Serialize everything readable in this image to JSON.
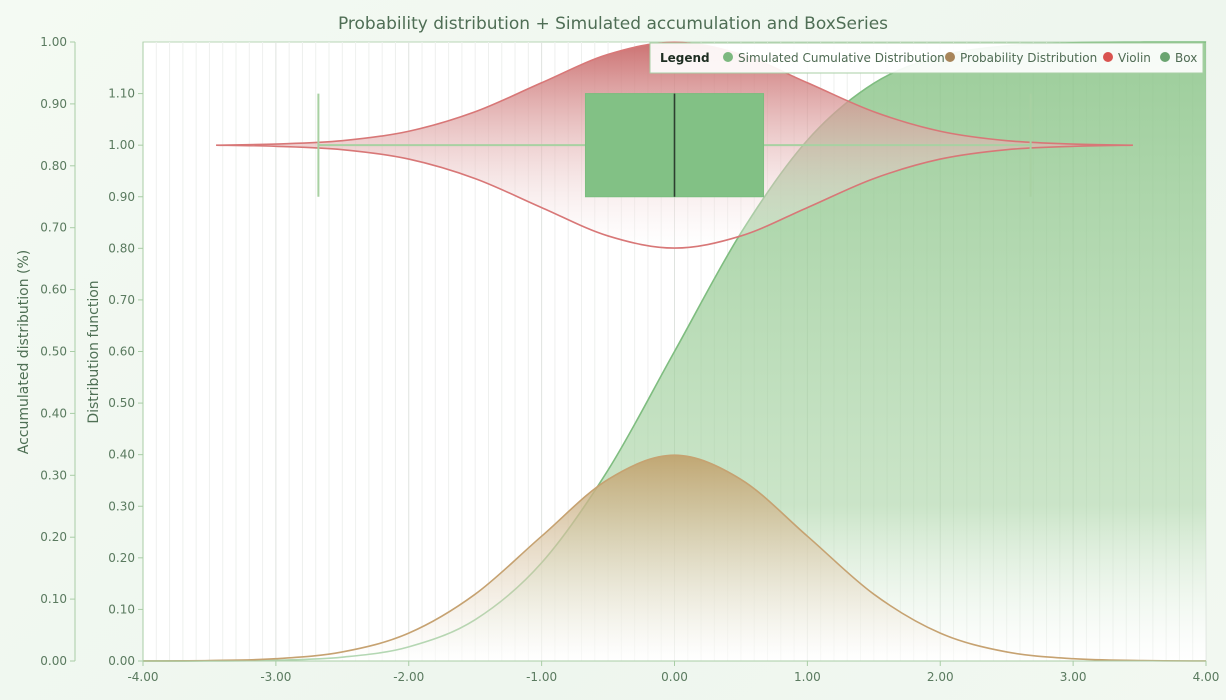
{
  "chart_data": {
    "title": "Probability distribution + Simulated accumulation and BoxSeries",
    "x_axis": {
      "range": [
        -4.0,
        4.0
      ],
      "ticks": [
        -4,
        -3,
        -2,
        -1,
        0,
        1,
        2,
        3,
        4
      ],
      "tick_labels": [
        "-4.00",
        "-3.00",
        "-2.00",
        "-1.00",
        "0.00",
        "1.00",
        "2.00",
        "3.00",
        "4.00"
      ],
      "label": ""
    },
    "y_axis_accumulated": {
      "label": "Accumulated distribution (%)",
      "range": [
        0,
        1.0
      ],
      "ticks": [
        0,
        0.1,
        0.2,
        0.3,
        0.4,
        0.5,
        0.6,
        0.7,
        0.8,
        0.9,
        1.0
      ],
      "tick_labels": [
        "0.00",
        "0.10",
        "0.20",
        "0.30",
        "0.40",
        "0.50",
        "0.60",
        "0.70",
        "0.80",
        "0.90",
        "1.00"
      ]
    },
    "y_axis_distribution": {
      "label": "Distribution function",
      "range": [
        0,
        1.2
      ],
      "ticks": [
        0,
        0.1,
        0.2,
        0.3,
        0.4,
        0.5,
        0.6,
        0.7,
        0.8,
        0.9,
        1.0,
        1.1
      ],
      "tick_labels": [
        "0.00",
        "0.10",
        "0.20",
        "0.30",
        "0.40",
        "0.50",
        "0.60",
        "0.70",
        "0.80",
        "0.90",
        "1.00",
        "1.10"
      ]
    },
    "legend": {
      "title": "Legend",
      "position": "top-right",
      "items": [
        {
          "label": "Simulated Cumulative Distribution",
          "color": "#7cb87f"
        },
        {
          "label": "Probability Distribution",
          "color": "#a8855a"
        },
        {
          "label": "Violin",
          "color": "#d9534f"
        },
        {
          "label": "Box",
          "color": "#6aa470"
        }
      ]
    },
    "series": [
      {
        "name": "Simulated Cumulative Distribution",
        "type": "area",
        "color": "#8cc48a",
        "x": [
          -4,
          -3.5,
          -3,
          -2.5,
          -2,
          -1.5,
          -1,
          -0.5,
          0,
          0.5,
          1,
          1.5,
          2,
          2.5,
          3,
          3.5,
          4
        ],
        "y": [
          0.0,
          0.0002,
          0.0013,
          0.0062,
          0.0228,
          0.0668,
          0.1587,
          0.3085,
          0.5,
          0.6915,
          0.8413,
          0.9332,
          0.9772,
          0.9938,
          0.9987,
          0.9998,
          1.0
        ]
      },
      {
        "name": "Probability Distribution",
        "type": "area",
        "color": "#c8a878",
        "x": [
          -4,
          -3.5,
          -3,
          -2.5,
          -2,
          -1.5,
          -1,
          -0.5,
          0,
          0.5,
          1,
          1.5,
          2,
          2.5,
          3,
          3.5,
          4
        ],
        "y": [
          0.0001,
          0.0009,
          0.0044,
          0.0175,
          0.054,
          0.1295,
          0.242,
          0.3521,
          0.3989,
          0.3521,
          0.242,
          0.1295,
          0.054,
          0.0175,
          0.0044,
          0.0009,
          0.0001
        ]
      },
      {
        "name": "Violin",
        "type": "violin",
        "color": "#cf6e6e",
        "center": 1.0,
        "x": [
          -3.45,
          -3,
          -2.5,
          -2,
          -1.5,
          -1,
          -0.5,
          0,
          0.5,
          1,
          1.5,
          2,
          2.5,
          3,
          3.45
        ],
        "half_width": [
          0.0,
          0.0022,
          0.0087,
          0.027,
          0.0648,
          0.121,
          0.176,
          0.1995,
          0.176,
          0.121,
          0.0648,
          0.027,
          0.0087,
          0.0022,
          0.0
        ]
      },
      {
        "name": "Box",
        "type": "box",
        "color": "#7fbf7f",
        "whisker_low": -2.68,
        "q1": -0.67,
        "median": 0.0,
        "q3": 0.67,
        "whisker_high": 2.68,
        "y_low": 0.9,
        "y_high": 1.1
      }
    ]
  }
}
